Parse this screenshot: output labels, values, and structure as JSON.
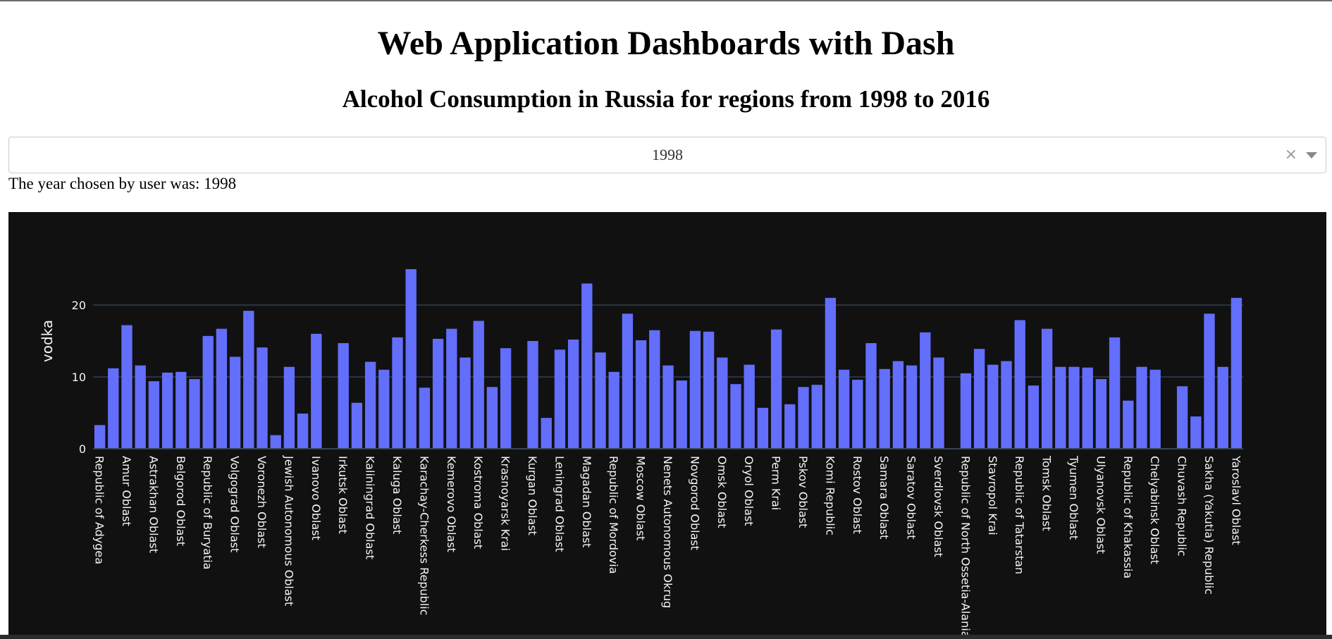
{
  "header": {
    "title": "Web Application Dashboards with Dash",
    "subtitle": "Alcohol Consumption in Russia for regions from 1998 to 2016"
  },
  "dropdown": {
    "selected": "1998",
    "clear_icon": "×",
    "arrow_icon": "chevron-down-icon"
  },
  "output": {
    "text": "The year chosen by user was: 1998"
  },
  "colors": {
    "bar": "#636efa",
    "background": "#111111",
    "grid": "#283442",
    "text": "#f2f5fa"
  },
  "chart_data": {
    "type": "bar",
    "title": "",
    "xlabel": "",
    "ylabel": "vodka",
    "ylim": [
      0,
      30
    ],
    "yticks": [
      0,
      10,
      20
    ],
    "grid": true,
    "categories": [
      "Republic of Adygea",
      "",
      "Amur Oblast",
      "",
      "Astrakhan Oblast",
      "",
      "Belgorod Oblast",
      "",
      "Republic of Buryatia",
      "",
      "Volgograd Oblast",
      "",
      "Voronezh Oblast",
      "",
      "Jewish Autonomous Oblast",
      "",
      "Ivanovo Oblast",
      "",
      "Irkutsk Oblast",
      "",
      "Kaliningrad Oblast",
      "",
      "Kaluga Oblast",
      "",
      "Karachay-Cherkess Republic",
      "",
      "Kemerovo Oblast",
      "",
      "Kostroma Oblast",
      "",
      "Krasnoyarsk Krai",
      "",
      "Kurgan Oblast",
      "",
      "Leningrad Oblast",
      "",
      "Magadan Oblast",
      "",
      "Republic of Mordovia",
      "",
      "Moscow Oblast",
      "",
      "Nenets Autonomous Okrug",
      "",
      "Novgorod Oblast",
      "",
      "Omsk Oblast",
      "",
      "Oryol Oblast",
      "",
      "Perm Krai",
      "",
      "Pskov Oblast",
      "",
      "Komi Republic",
      "",
      "Rostov Oblast",
      "",
      "Samara Oblast",
      "",
      "Saratov Oblast",
      "",
      "Sverdlovsk Oblast",
      "",
      "Republic of North Ossetia-Alania",
      "",
      "Stavropol Krai",
      "",
      "Republic of Tatarstan",
      "",
      "Tomsk Oblast",
      "",
      "Tyumen Oblast",
      "",
      "Ulyanovsk Oblast",
      "",
      "Republic of Khakassia",
      "",
      "Chelyabinsk Oblast",
      "",
      "Chuvash Republic",
      "",
      "Sakha (Yakutia) Republic",
      "",
      "Yaroslavl Oblast"
    ],
    "values": [
      3.3,
      11.2,
      17.2,
      11.6,
      9.4,
      10.6,
      10.7,
      9.7,
      15.7,
      16.7,
      12.8,
      19.2,
      14.1,
      1.9,
      11.4,
      4.9,
      16.0,
      0,
      14.7,
      6.4,
      12.1,
      11.0,
      15.5,
      25.0,
      8.5,
      15.3,
      16.7,
      12.7,
      17.8,
      8.6,
      14.0,
      0,
      15.0,
      4.3,
      13.8,
      15.2,
      23.0,
      13.4,
      10.7,
      18.8,
      15.1,
      16.5,
      11.6,
      9.5,
      16.4,
      16.3,
      12.7,
      9.0,
      11.7,
      5.7,
      16.6,
      6.2,
      8.6,
      8.9,
      21.0,
      11.0,
      9.6,
      14.7,
      11.1,
      12.2,
      11.6,
      16.2,
      12.7,
      0,
      10.5,
      13.9,
      11.7,
      12.2,
      17.9,
      8.8,
      16.7,
      11.4,
      11.4,
      11.3,
      9.7,
      15.5,
      6.7,
      11.4,
      11.0,
      0,
      8.7,
      4.5,
      18.8,
      11.4,
      21.0
    ]
  }
}
